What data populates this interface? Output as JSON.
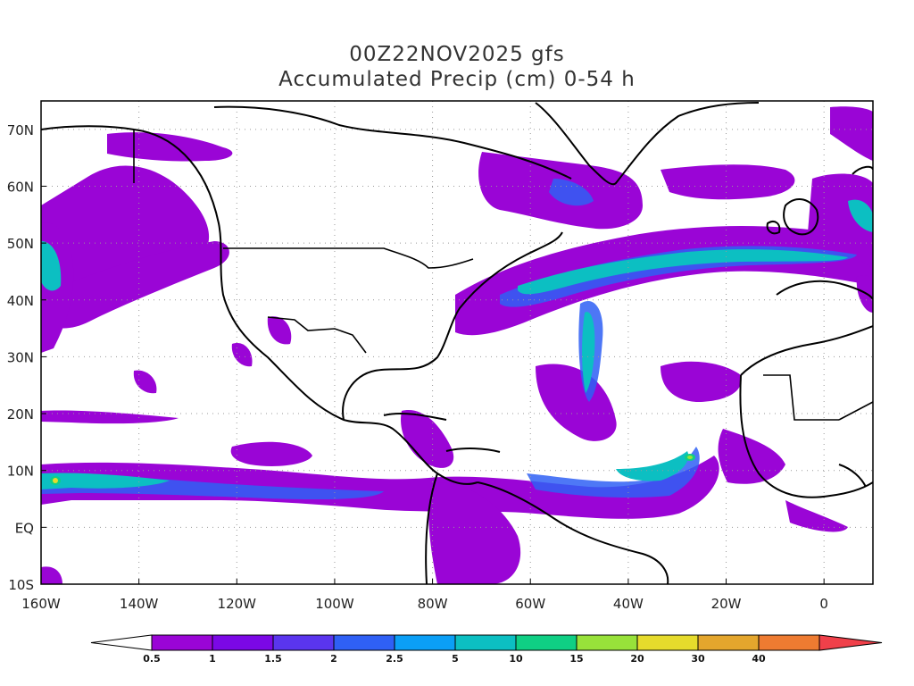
{
  "title_line1": "00Z22NOV2025 gfs",
  "title_line2": "Accumulated Precip (cm) 0-54 h",
  "map": {
    "lon_labels": [
      "160W",
      "140W",
      "120W",
      "100W",
      "80W",
      "60W",
      "40W",
      "20W",
      "0"
    ],
    "lat_labels": [
      "70N",
      "60N",
      "50N",
      "40N",
      "30N",
      "20N",
      "10N",
      "EQ",
      "10S"
    ]
  },
  "colorbar": {
    "labels": [
      "0.5",
      "1",
      "1.5",
      "2",
      "2.5",
      "5",
      "10",
      "15",
      "20",
      "30",
      "40"
    ],
    "colors": [
      "#ffffff",
      "#9a05d6",
      "#7b08e6",
      "#5a35ee",
      "#2f60f5",
      "#0b9ff6",
      "#0cbfc2",
      "#0fcf84",
      "#98e23a",
      "#e6db2c",
      "#e4a62d",
      "#ee7b31",
      "#f0404a"
    ]
  }
}
